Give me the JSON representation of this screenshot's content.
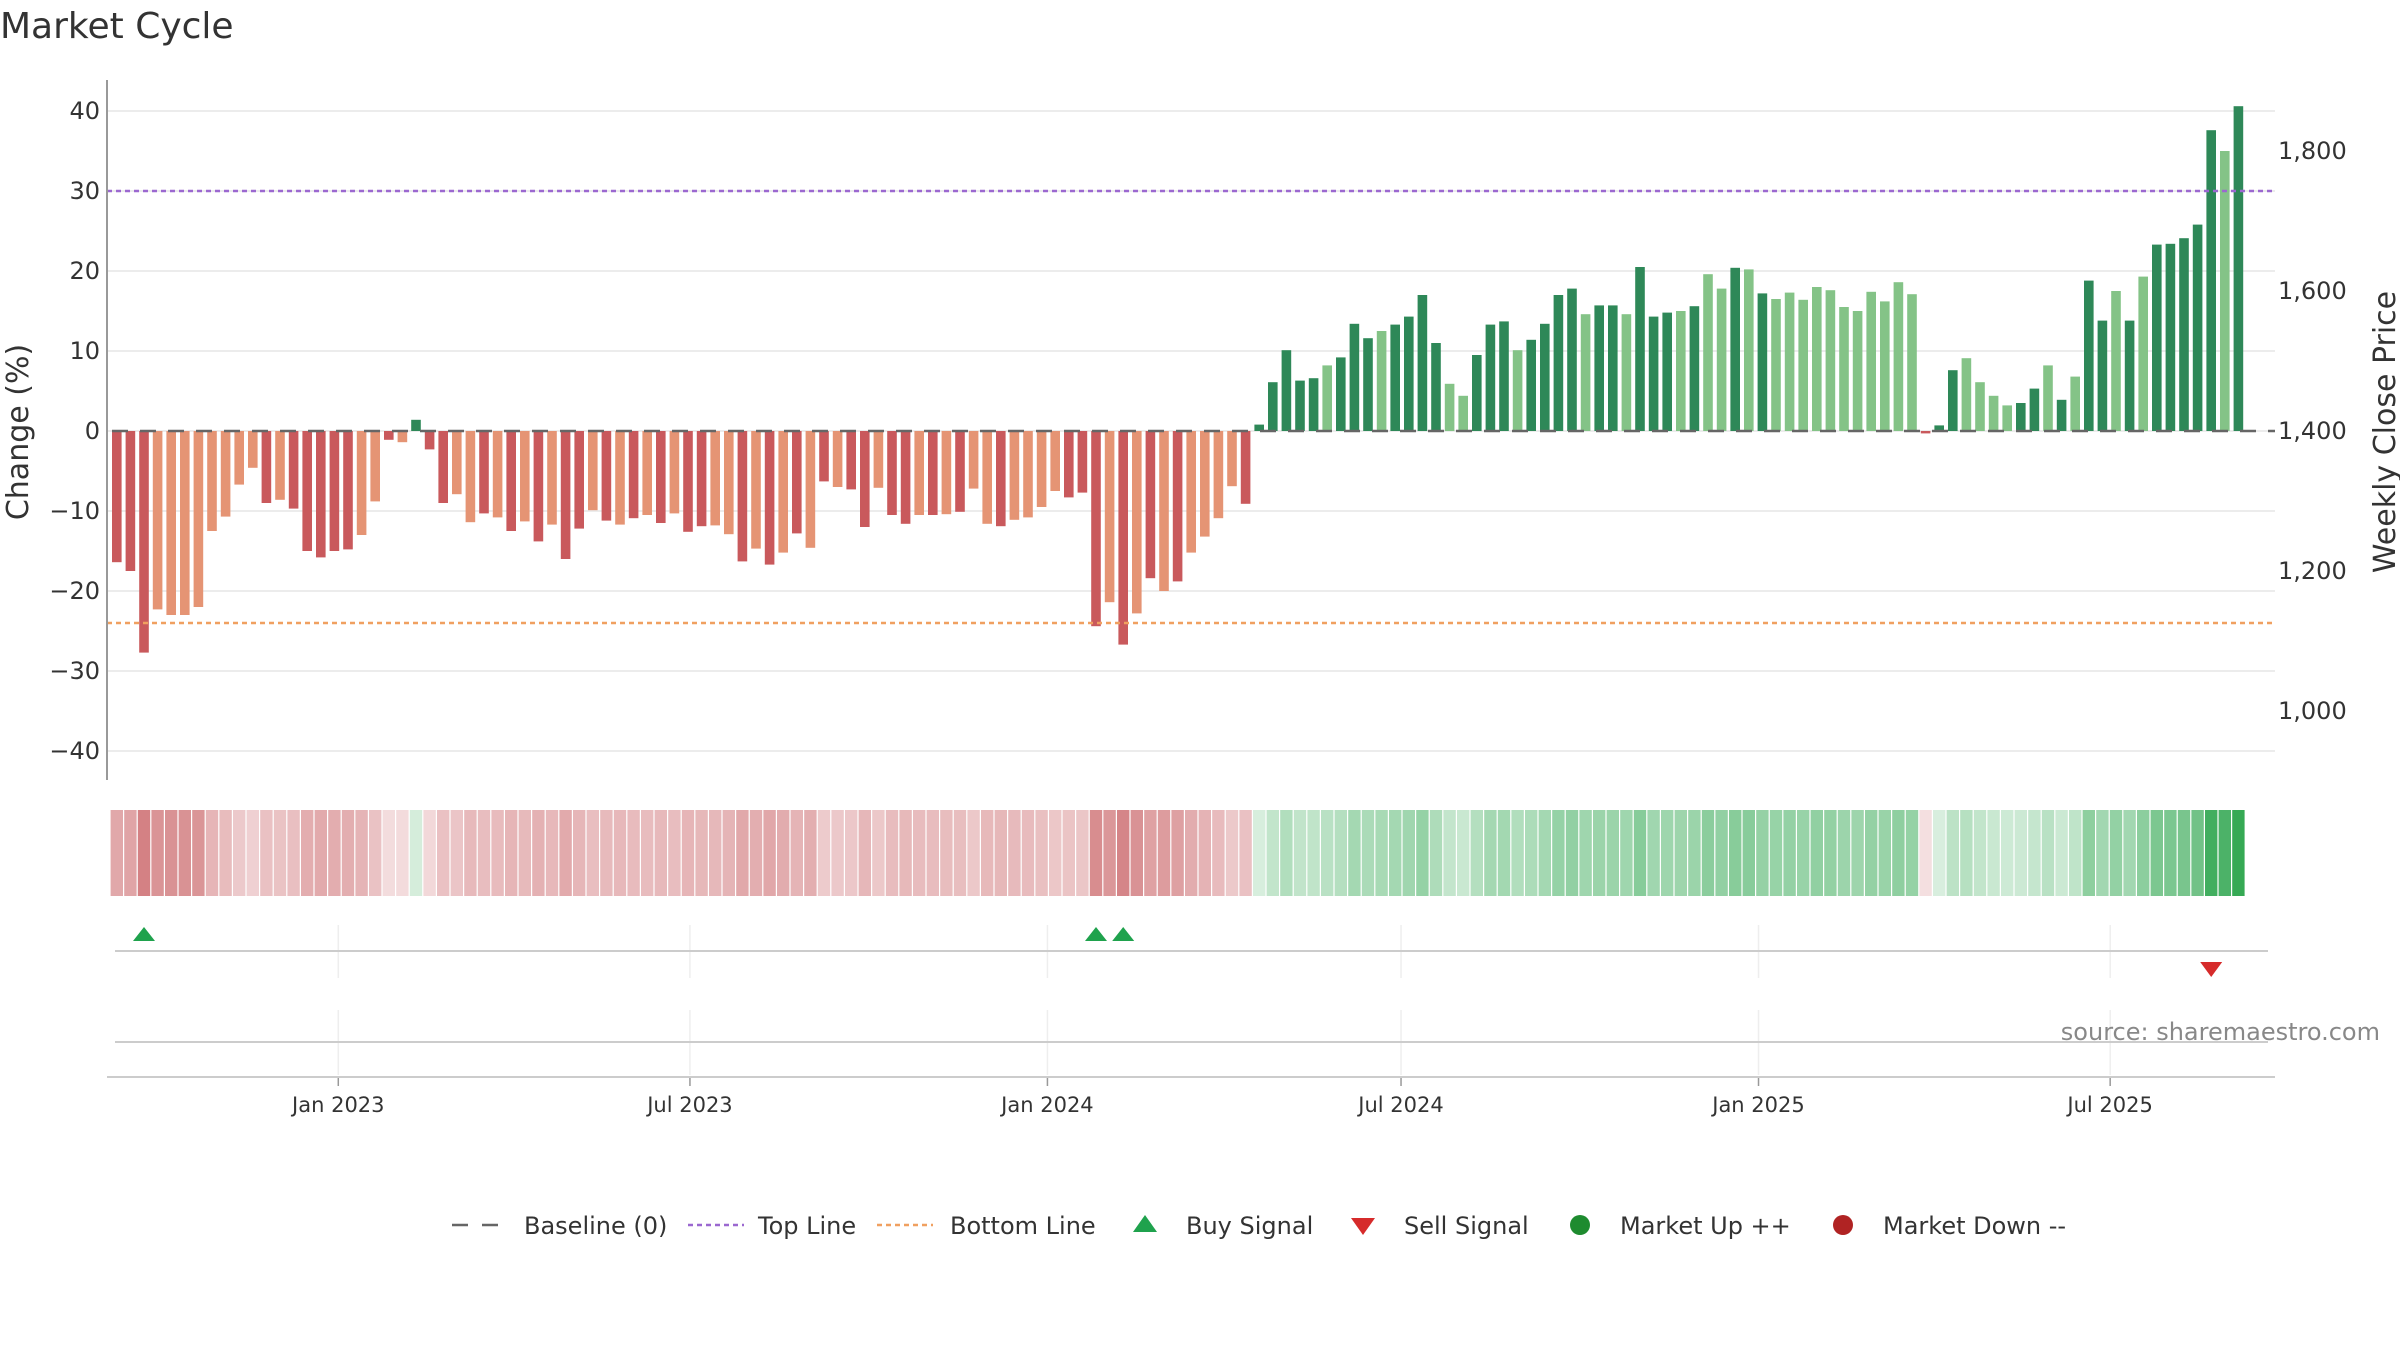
{
  "chart_data": {
    "type": "bar",
    "title": "Market Cycle",
    "ylabel_left": "Change (%)",
    "ylabel_right": "Weekly Close Price",
    "ylim": [
      -44,
      44
    ],
    "yticks": [
      40,
      30,
      20,
      10,
      0,
      -10,
      -20,
      -30,
      -40
    ],
    "ytick_labels": [
      "40",
      "30",
      "20",
      "10",
      "0",
      "−10",
      "−20",
      "−30",
      "−40"
    ],
    "price_ticks": [
      1800,
      1600,
      1400,
      1200,
      1000
    ],
    "price_tick_labels": [
      "1,800",
      "1,600",
      "1,400",
      "1,200",
      "1,000"
    ],
    "start_date": "2022-09-09",
    "top_line": 30,
    "bottom_line": -24,
    "values": [
      -16.4,
      -17.5,
      -27.7,
      -22.3,
      -23,
      -23,
      -22,
      -12.5,
      -10.7,
      -6.7,
      -4.6,
      -9,
      -8.6,
      -9.7,
      -15,
      -15.8,
      -15,
      -14.8,
      -13,
      -8.8,
      -1.1,
      -1.4,
      1.4,
      -2.3,
      -9,
      -7.9,
      -11.4,
      -10.3,
      -10.8,
      -12.5,
      -11.3,
      -13.8,
      -11.7,
      -16,
      -12.2,
      -9.9,
      -11.2,
      -11.7,
      -10.9,
      -10.5,
      -11.5,
      -10.3,
      -12.6,
      -11.9,
      -11.8,
      -12.9,
      -16.3,
      -14.7,
      -16.7,
      -15.2,
      -12.8,
      -14.6,
      -6.3,
      -7,
      -7.3,
      -12,
      -7.1,
      -10.5,
      -11.6,
      -10.5,
      -10.5,
      -10.4,
      -10.1,
      -7.2,
      -11.6,
      -11.9,
      -11.1,
      -10.8,
      -9.5,
      -7.5,
      -8.3,
      -7.7,
      -24.4,
      -21.4,
      -26.7,
      -22.8,
      -18.4,
      -20,
      -18.8,
      -15.2,
      -13.2,
      -10.9,
      -6.9,
      -9.1,
      0.8,
      6.1,
      10.1,
      6.3,
      6.6,
      8.2,
      9.2,
      13.4,
      11.6,
      12.5,
      13.3,
      14.3,
      17,
      11,
      5.9,
      4.4,
      9.5,
      13.3,
      13.7,
      10.1,
      11.4,
      13.4,
      17,
      17.8,
      14.6,
      15.7,
      15.7,
      14.6,
      20.5,
      14.3,
      14.8,
      15,
      15.6,
      19.6,
      17.8,
      20.4,
      20.2,
      17.2,
      16.5,
      17.3,
      16.4,
      18,
      17.6,
      15.5,
      15,
      17.4,
      16.2,
      18.6,
      17.1,
      -0.3,
      0.7,
      7.6,
      9.1,
      6.1,
      4.4,
      3.2,
      3.5,
      5.3,
      8.2,
      3.9,
      6.8,
      18.8,
      13.8,
      17.5,
      13.8,
      19.3,
      23.3,
      23.4,
      24.1,
      25.8,
      37.6,
      35,
      40.6
    ],
    "light_bars": [
      3,
      4,
      5,
      6,
      7,
      8,
      9,
      10,
      12,
      18,
      19,
      21,
      25,
      26,
      28,
      30,
      32,
      35,
      37,
      39,
      41,
      44,
      45,
      47,
      49,
      51,
      53,
      56,
      59,
      61,
      63,
      64,
      66,
      67,
      68,
      69,
      73,
      75,
      77,
      79,
      80,
      81,
      82,
      89,
      93,
      98,
      99,
      103,
      108,
      111,
      115,
      117,
      118,
      120,
      122,
      123,
      124,
      125,
      126,
      127,
      128,
      129,
      130,
      131,
      132,
      136,
      137,
      138,
      139,
      142,
      144,
      147,
      149,
      155,
      157
    ],
    "signals": [
      {
        "type": "buy",
        "index": 2
      },
      {
        "type": "buy",
        "index": 72
      },
      {
        "type": "buy",
        "index": 74
      },
      {
        "type": "sell",
        "index": 154
      }
    ],
    "x_ticks": [
      "Jan 2023",
      "Jul 2023",
      "Jan 2024",
      "Jul 2024",
      "Jan 2025",
      "Jul 2025"
    ],
    "x_tick_dates": [
      "2023-01-01",
      "2023-07-01",
      "2024-01-01",
      "2024-07-01",
      "2025-01-01",
      "2025-07-01"
    ],
    "colors": {
      "dark_red": "#c9595c",
      "light_red": "#e59474",
      "dark_green": "#2e8858",
      "light_green": "#84c387",
      "top_line": "#9b68d0",
      "bottom_line": "#f0a060",
      "buy": "#1fa24d",
      "sell": "#d62b2b",
      "market_up": "#1e8b2f",
      "market_down": "#b02323"
    }
  },
  "source": "source: sharemaestro.com",
  "legend": [
    {
      "label": "Baseline (0)",
      "icon": "baseline-dash-icon"
    },
    {
      "label": "Top Line",
      "icon": "top-line-dot-icon"
    },
    {
      "label": "Bottom Line",
      "icon": "bottom-line-dot-icon"
    },
    {
      "label": "Buy Signal",
      "icon": "triangle-up-icon"
    },
    {
      "label": "Sell Signal",
      "icon": "triangle-down-icon"
    },
    {
      "label": "Market Up ++",
      "icon": "green-dot-icon"
    },
    {
      "label": "Market Down --",
      "icon": "red-dot-icon"
    }
  ]
}
